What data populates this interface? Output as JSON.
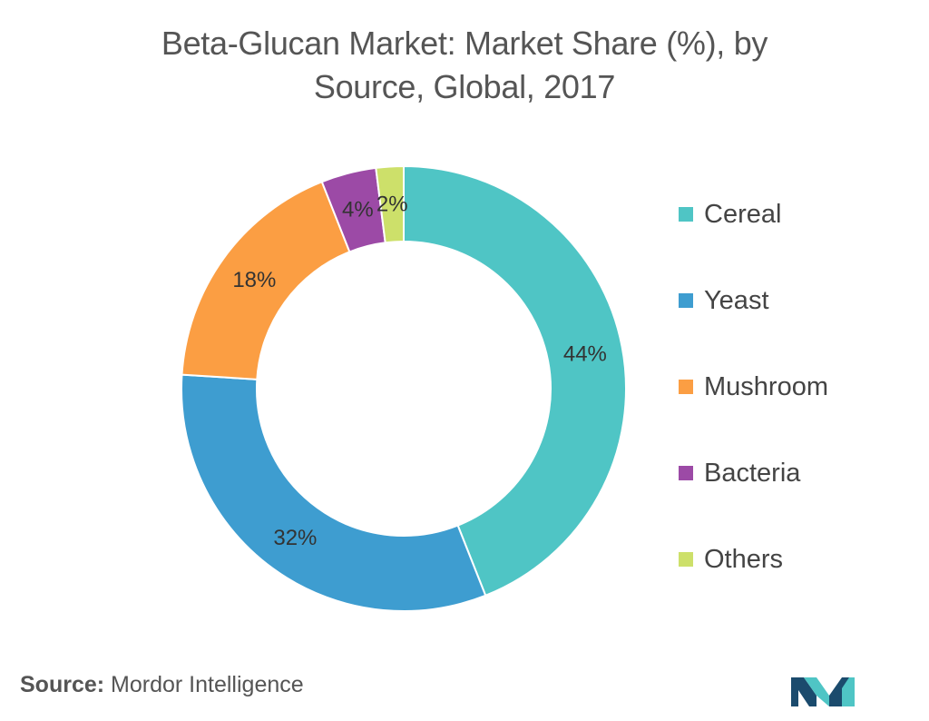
{
  "chart_data": {
    "type": "pie",
    "style": "donut",
    "title": "Beta-Glucan Market: Market Share (%), by Source, Global, 2017",
    "title_lines": [
      "Beta-Glucan Market: Market Share (%), by",
      "Source, Global, 2017"
    ],
    "categories": [
      "Cereal",
      "Yeast",
      "Mushroom",
      "Bacteria",
      "Others"
    ],
    "values": [
      44,
      32,
      18,
      4,
      2
    ],
    "labels": [
      "44%",
      "32%",
      "18%",
      "4%",
      "2%"
    ],
    "colors": [
      "#4fc5c5",
      "#3e9dd0",
      "#fb9e43",
      "#9c4aa6",
      "#cde06a"
    ],
    "legend_position": "right"
  },
  "source": {
    "prefix": "Source:",
    "text": "Mordor Intelligence"
  },
  "logo": {
    "icon": "mordor-intelligence-logo-icon",
    "colors": [
      "#1b4b6d",
      "#4fc5c5"
    ]
  }
}
